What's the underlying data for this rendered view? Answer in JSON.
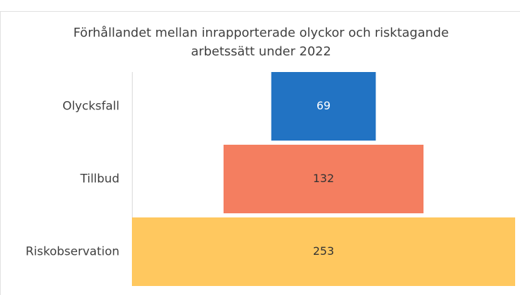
{
  "chart_data": {
    "type": "funnel",
    "title": [
      "Förhållandet mellan inrapporterade olyckor och risktagande",
      "arbetssätt under 2022"
    ],
    "categories": [
      "Olycksfall",
      "Tillbud",
      "Riskobservation"
    ],
    "values": [
      69,
      132,
      253
    ],
    "colors": [
      "#2273c3",
      "#f47e60",
      "#ffc85f"
    ]
  }
}
